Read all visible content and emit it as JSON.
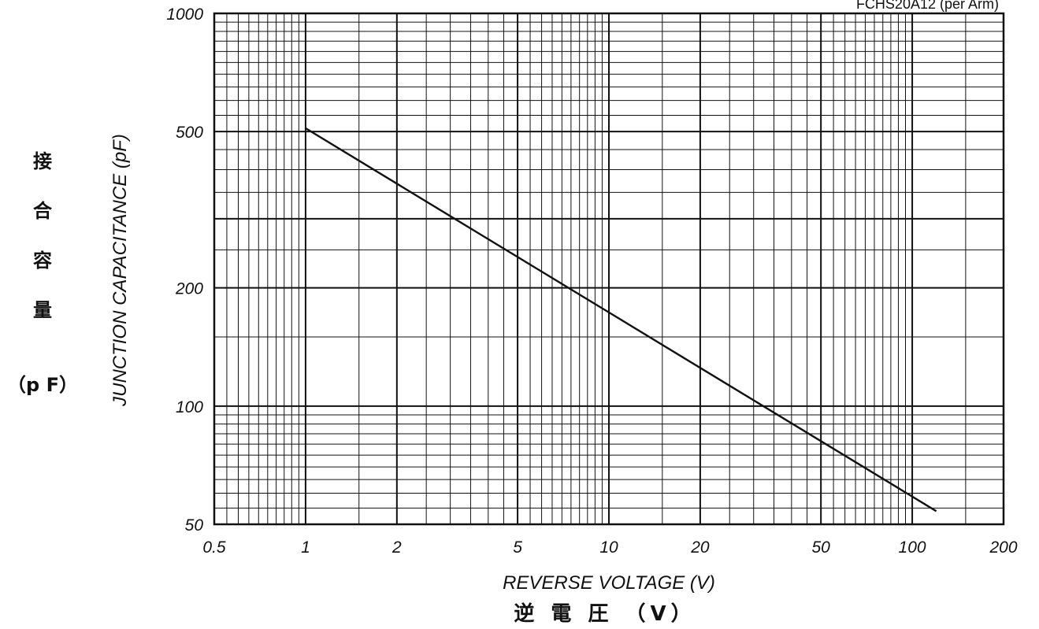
{
  "chart_data": {
    "type": "line",
    "title": "FCHS20A12 (per Arm)",
    "xlabel": "REVERSE VOLTAGE (V)",
    "xlabel_jp": "逆 電 圧 （V）",
    "ylabel": "JUNCTION CAPACITANCE (pF)",
    "ylabel_jp": [
      "接",
      "合",
      "容",
      "量"
    ],
    "ylabel_jp_unit": "（p F）",
    "x_scale": "log",
    "y_scale": "log",
    "xlim": [
      0.5,
      200
    ],
    "ylim": [
      50,
      1000
    ],
    "x_ticks": [
      "0.5",
      "1",
      "2",
      "5",
      "10",
      "20",
      "50",
      "100",
      "200"
    ],
    "y_ticks": [
      "50",
      "100",
      "200",
      "500",
      "1000"
    ],
    "grid": true,
    "series": [
      {
        "x": [
          1,
          120
        ],
        "y": [
          510,
          54
        ]
      }
    ]
  }
}
